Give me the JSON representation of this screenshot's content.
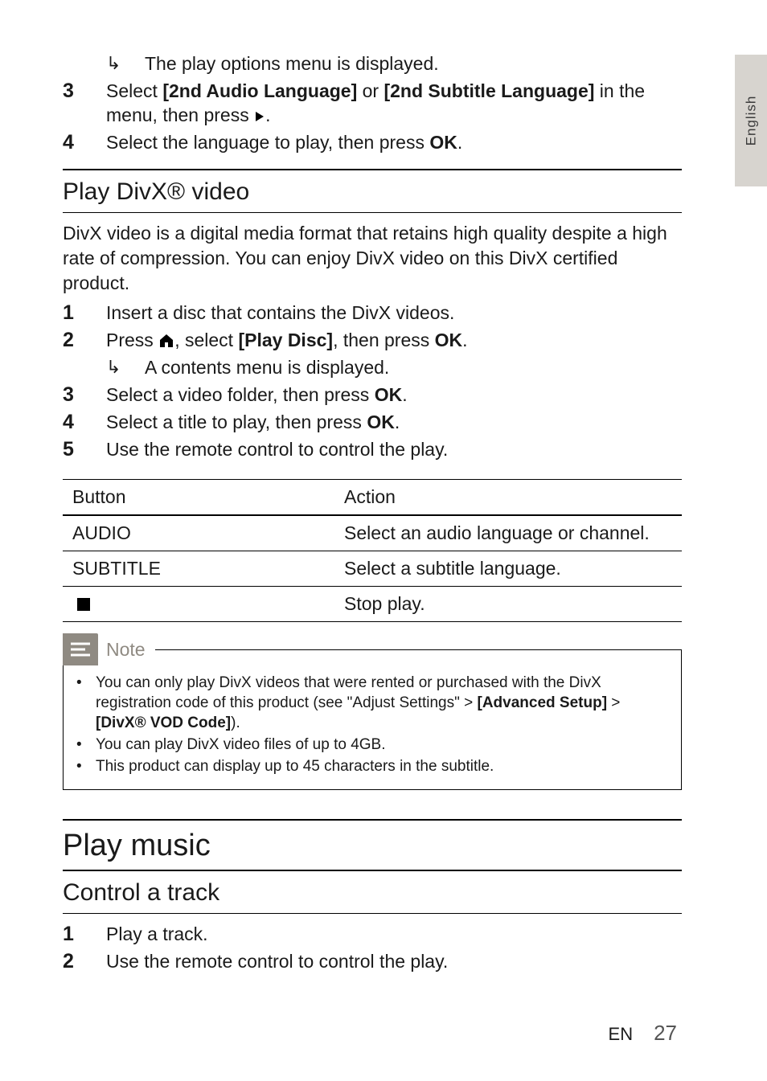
{
  "tab_label": "English",
  "top_steps": [
    {
      "n": "",
      "sub_arrow": true,
      "text": "The play options menu is displayed."
    },
    {
      "n": "3",
      "parts": [
        "Select ",
        {
          "b": "[2nd Audio Language]"
        },
        " or ",
        {
          "b": "[2nd Subtitle Language]"
        },
        " in the menu, then press ",
        {
          "icon": "play-tri"
        },
        "."
      ]
    },
    {
      "n": "4",
      "parts": [
        "Select the language to play, then press ",
        {
          "b": "OK"
        },
        "."
      ]
    }
  ],
  "divx": {
    "heading": "Play DivX® video",
    "intro": "DivX video is a digital media format that retains high quality despite a high rate of compression. You can enjoy DivX video on this DivX certified product.",
    "steps": [
      {
        "n": "1",
        "parts": [
          "Insert a disc that contains the DivX videos."
        ]
      },
      {
        "n": "2",
        "parts": [
          "Press ",
          {
            "icon": "home"
          },
          ", select ",
          {
            "b": "[Play Disc]"
          },
          ", then press ",
          {
            "b": "OK"
          },
          "."
        ],
        "sub": "A contents menu is displayed."
      },
      {
        "n": "3",
        "parts": [
          "Select a video folder, then press ",
          {
            "b": "OK"
          },
          "."
        ]
      },
      {
        "n": "4",
        "parts": [
          "Select a title to play, then press ",
          {
            "b": "OK"
          },
          "."
        ]
      },
      {
        "n": "5",
        "parts": [
          "Use the remote control to control the play."
        ]
      }
    ],
    "table": {
      "head": [
        "Button",
        "Action"
      ],
      "rows": [
        [
          "AUDIO",
          "Select an audio language or channel."
        ],
        [
          "SUBTITLE",
          "Select a subtitle language."
        ],
        [
          {
            "icon": "stop"
          },
          "Stop play."
        ]
      ]
    },
    "note_label": "Note",
    "notes": [
      [
        "You can only play DivX videos that were rented or purchased with the DivX registration code of this product (see \"Adjust Settings\" > ",
        {
          "b": "[Advanced Setup]"
        },
        " > ",
        {
          "b": "[DivX® VOD Code]"
        },
        ")."
      ],
      [
        "You can play DivX video files of up to 4GB."
      ],
      [
        "This product can display up to 45 characters in the subtitle."
      ]
    ]
  },
  "music": {
    "heading": "Play music",
    "sub": "Control a track",
    "steps": [
      {
        "n": "1",
        "parts": [
          "Play a track."
        ]
      },
      {
        "n": "2",
        "parts": [
          "Use the remote control to control the play."
        ]
      }
    ]
  },
  "footer": {
    "lang": "EN",
    "page": "27"
  }
}
